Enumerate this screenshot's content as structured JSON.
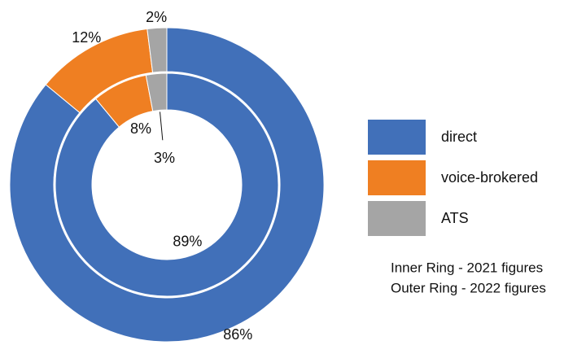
{
  "chart_data": {
    "type": "donut",
    "categories": [
      "direct",
      "voice-brokered",
      "ATS"
    ],
    "colors": [
      "#4170b9",
      "#ef7f22",
      "#a5a5a5"
    ],
    "series": [
      {
        "values": [
          89,
          8,
          3
        ],
        "value_labels": [
          "89%",
          "8%",
          "3%"
        ]
      },
      {
        "values": [
          86,
          12,
          2
        ],
        "value_labels": [
          "86%",
          "12%",
          "2%"
        ]
      }
    ],
    "annotations": [
      "Inner Ring - 2021 figures",
      "Outer Ring - 2022 figures"
    ]
  }
}
